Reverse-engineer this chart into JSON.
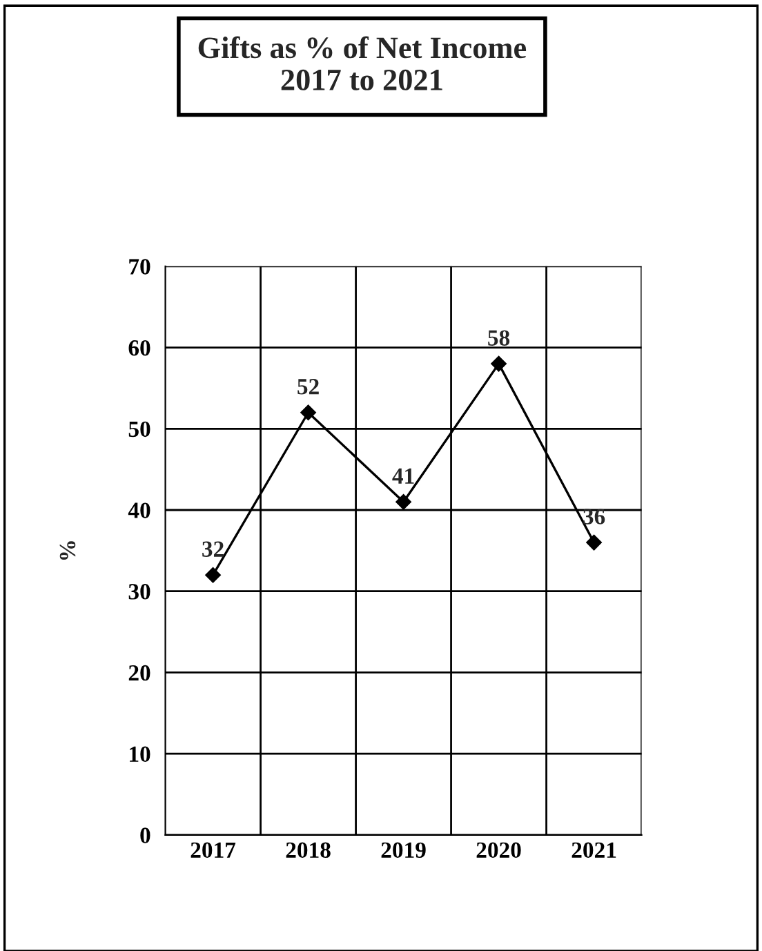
{
  "chart_data": {
    "type": "line",
    "title": "Gifts as % of Net Income\n2017 to 2021",
    "ylabel": "%",
    "categories": [
      "2017",
      "2018",
      "2019",
      "2020",
      "2021"
    ],
    "series": [
      {
        "color": "#000000",
        "values": [
          32,
          52,
          41,
          58,
          36
        ]
      }
    ],
    "ylim": [
      0,
      70
    ],
    "yticks": [
      0,
      10,
      20,
      30,
      40,
      50,
      60,
      70
    ],
    "grid": true,
    "marker": "diamond",
    "line_style": "solid",
    "data_labels": true
  }
}
